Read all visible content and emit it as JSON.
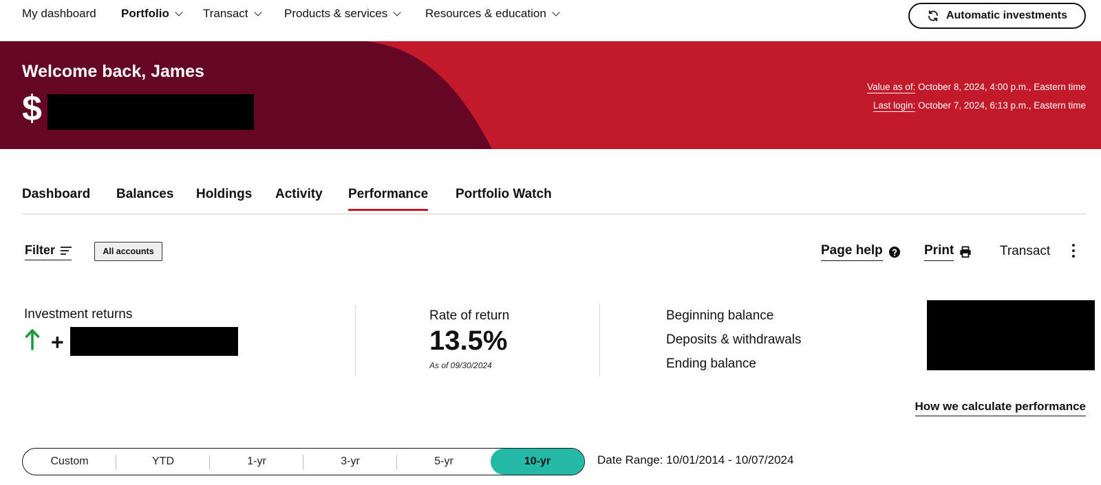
{
  "nav": {
    "items": [
      "My dashboard",
      "Portfolio",
      "Transact",
      "Products & services",
      "Resources & education"
    ],
    "auto_invest": "Automatic investments"
  },
  "hero": {
    "welcome": "Welcome back, James",
    "currency": "$",
    "value_as_of_label": "Value as of:",
    "value_as_of": " October 8, 2024, 4:00 p.m., Eastern time",
    "last_login_label": "Last login:",
    "last_login": " October 7, 2024, 6:13 p.m., Eastern time"
  },
  "tabs": [
    "Dashboard",
    "Balances",
    "Holdings",
    "Activity",
    "Performance",
    "Portfolio Watch"
  ],
  "toolbar": {
    "filter": "Filter",
    "chip": "All accounts",
    "page_help": "Page help",
    "print": "Print",
    "transact": "Transact"
  },
  "summary": {
    "investment_returns": "Investment returns",
    "returns_sign": "+",
    "rate_of_return_label": "Rate of return",
    "rate_of_return": "13.5%",
    "as_of": "As of 09/30/2024",
    "beginning_balance": "Beginning balance",
    "deposits": "Deposits & withdrawals",
    "ending_balance": "Ending balance",
    "how_link": "How we calculate performance"
  },
  "range": {
    "options": [
      "Custom",
      "YTD",
      "1-yr",
      "3-yr",
      "5-yr",
      "10-yr"
    ],
    "selected": "10-yr",
    "date_range": "Date Range: 10/01/2014 - 10/07/2024"
  },
  "colors": {
    "brand_red": "#c21a2a",
    "dark_maroon": "#650624",
    "accent_teal": "#23b9a6",
    "up_green": "#1a9a3a"
  }
}
